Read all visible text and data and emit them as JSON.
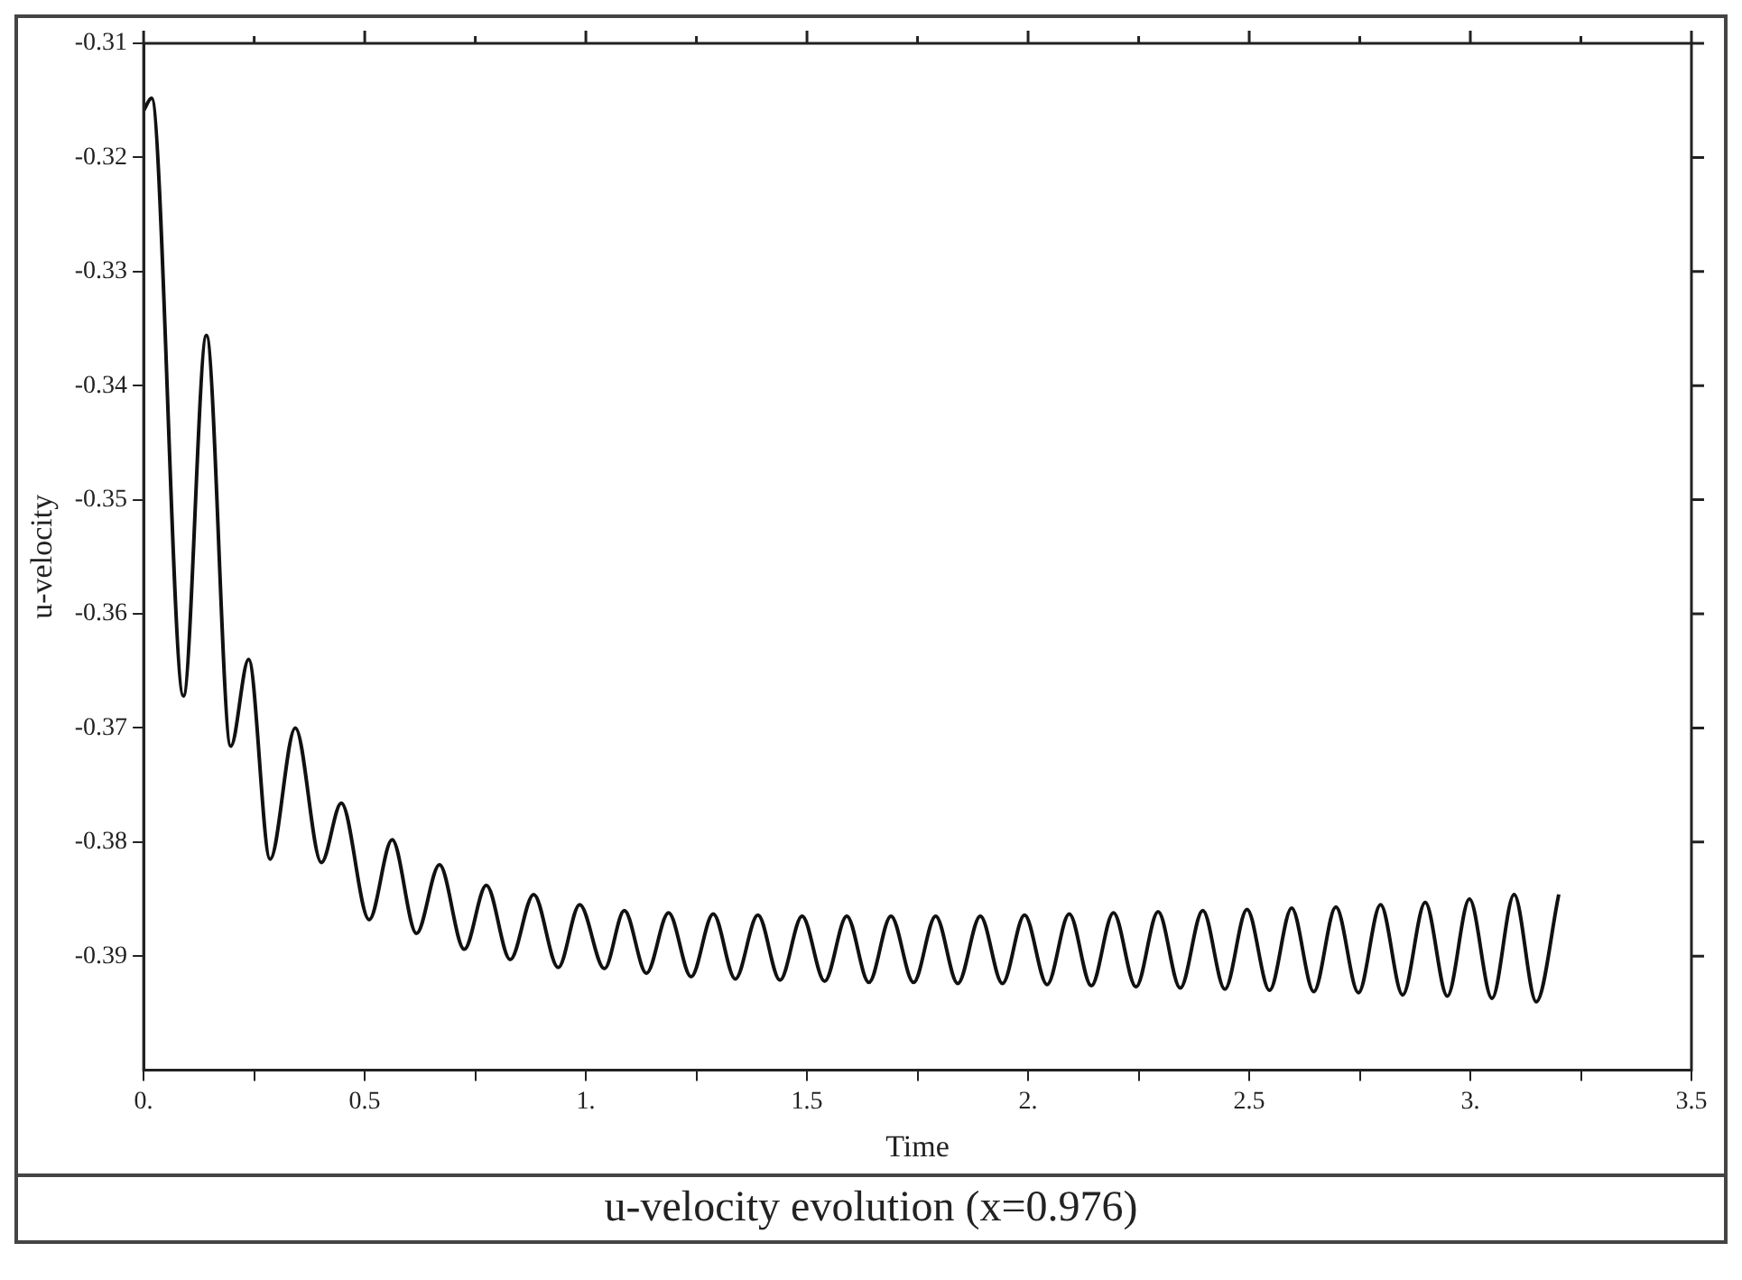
{
  "chart_data": {
    "type": "line",
    "title": "u-velocity evolution (x=0.976)",
    "xlabel": "Time",
    "ylabel": "u-velocity",
    "xlim": [
      0,
      3.5
    ],
    "xticks": [
      {
        "value": 0,
        "label": "0."
      },
      {
        "value": 0.25,
        "label": null
      },
      0.5,
      {
        "value": 0.75,
        "label": null
      },
      {
        "value": 1,
        "label": "1."
      },
      {
        "value": 1.25,
        "label": null
      },
      1.5,
      {
        "value": 1.75,
        "label": null
      },
      {
        "value": 2,
        "label": "2."
      },
      {
        "value": 2.25,
        "label": null
      },
      2.5,
      {
        "value": 2.75,
        "label": null
      },
      {
        "value": 3,
        "label": "3."
      },
      {
        "value": 3.25,
        "label": null
      },
      3.5
    ],
    "ylim": [
      -0.4,
      -0.31
    ],
    "yticks": [
      -0.31,
      -0.32,
      -0.33,
      -0.34,
      -0.35,
      -0.36,
      -0.37,
      -0.38,
      -0.39
    ],
    "grid": false,
    "legend": false,
    "marker": "none",
    "line_style": "solid",
    "series": [
      {
        "color": "#111111",
        "x": [
          0,
          0.018,
          0.09,
          0.142,
          0.197,
          0.2375,
          0.286,
          0.343,
          0.402,
          0.447,
          0.51,
          0.562,
          0.617,
          0.669,
          0.725,
          0.775,
          0.829,
          0.882,
          0.9375,
          0.986,
          1.042,
          1.087,
          1.137,
          1.187,
          1.238,
          1.288,
          1.338,
          1.389,
          1.439,
          1.489,
          1.54,
          1.59,
          1.64,
          1.69,
          1.741,
          1.791,
          1.841,
          1.892,
          1.942,
          1.992,
          2.043,
          2.093,
          2.143,
          2.193,
          2.244,
          2.294,
          2.344,
          2.395,
          2.445,
          2.495,
          2.546,
          2.596,
          2.646,
          2.696,
          2.747,
          2.797,
          2.847,
          2.898,
          2.948,
          2.998,
          3.049,
          3.099,
          3.149,
          3.2
        ],
        "values": [
          -0.3159,
          -0.3148,
          -0.3672,
          -0.3356,
          -0.3716,
          -0.364,
          -0.3815,
          -0.37,
          -0.3818,
          -0.3766,
          -0.3868,
          -0.3798,
          -0.388,
          -0.382,
          -0.3894,
          -0.3838,
          -0.3903,
          -0.3846,
          -0.391,
          -0.3855,
          -0.3911,
          -0.386,
          -0.3915,
          -0.3862,
          -0.3918,
          -0.3863,
          -0.392,
          -0.3864,
          -0.3921,
          -0.3865,
          -0.3922,
          -0.3865,
          -0.3923,
          -0.3865,
          -0.3923,
          -0.3865,
          -0.3924,
          -0.3865,
          -0.3924,
          -0.3864,
          -0.3925,
          -0.3863,
          -0.3926,
          -0.3862,
          -0.3927,
          -0.3861,
          -0.3928,
          -0.386,
          -0.3929,
          -0.3859,
          -0.393,
          -0.3858,
          -0.3931,
          -0.3857,
          -0.3932,
          -0.3855,
          -0.3934,
          -0.3853,
          -0.3935,
          -0.385,
          -0.3937,
          -0.3846,
          -0.394,
          -0.3846
        ]
      }
    ]
  }
}
